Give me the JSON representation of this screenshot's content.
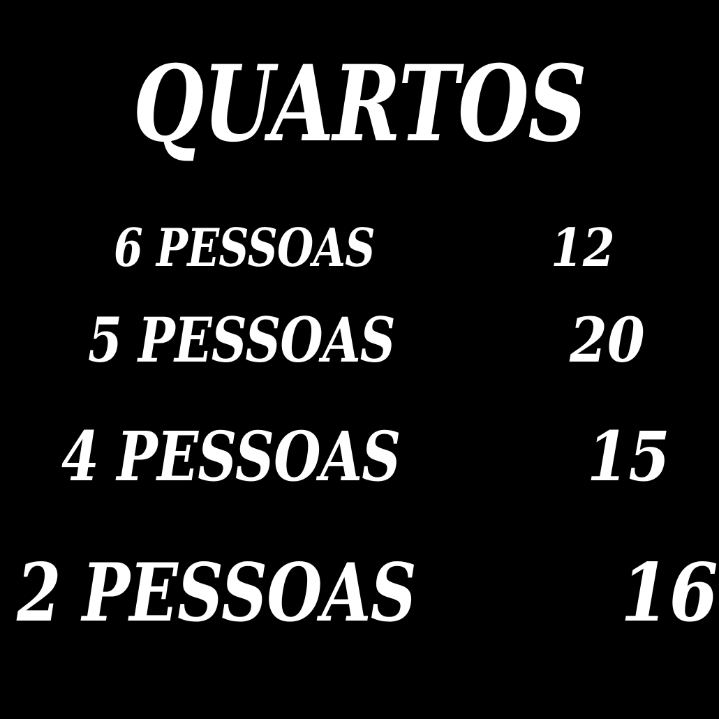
{
  "page": {
    "background_color": "#000000",
    "text_color": "#ffffff"
  },
  "title": "QUARTOS",
  "rooms": [
    {
      "label": "6 PESSOAS",
      "value": "12"
    },
    {
      "label": "5 PESSOAS",
      "value": "20"
    },
    {
      "label": "4 PESSOAS",
      "value": "15"
    },
    {
      "label": "2 PESSOAS",
      "value": "16"
    }
  ]
}
